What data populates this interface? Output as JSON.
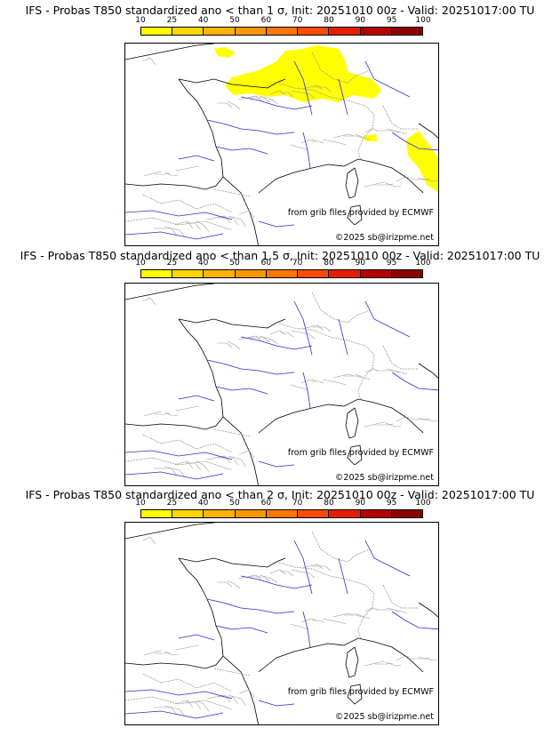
{
  "colorbar": {
    "ticks": [
      "10",
      "25",
      "40",
      "50",
      "60",
      "70",
      "80",
      "90",
      "95",
      "100"
    ],
    "colors": [
      "#ffff00",
      "#ffd700",
      "#ffb400",
      "#ff9600",
      "#ff7800",
      "#ff4b00",
      "#e61e00",
      "#b40000",
      "#8c0000"
    ]
  },
  "colors": {
    "river": "#2b2bd8",
    "border": "#9a9a9a",
    "coast": "#000000",
    "prob_fill": "#ffff00"
  },
  "panels": [
    {
      "title": "IFS - Probas T850  standardized ano < than 1 σ, Init: 20251010 00z - Valid: 20251017:00 TU",
      "credit": "from grib files provided by ECMWF",
      "copyright": "©2025 sb@irizpme.net",
      "has_prob_areas": true
    },
    {
      "title": "IFS - Probas T850  standardized ano < than 1.5 σ, Init: 20251010 00z - Valid: 20251017:00 TU",
      "credit": "from grib files provided by ECMWF",
      "copyright": "©2025 sb@irizpme.net",
      "has_prob_areas": false
    },
    {
      "title": "IFS - Probas T850  standardized ano < than 2 σ, Init: 20251010 00z - Valid: 20251017:00 TU",
      "credit": "from grib files provided by ECMWF",
      "copyright": "©2025 sb@irizpme.net",
      "has_prob_areas": false
    }
  ]
}
